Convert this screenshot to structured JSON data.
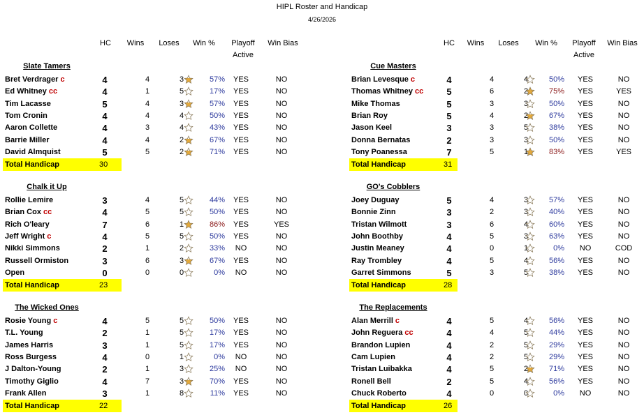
{
  "title": "HIPL Roster and Handicap",
  "date": "4/26/2026",
  "headers": {
    "hc": "HC",
    "wins": "Wins",
    "loses": "Loses",
    "winpct": "Win %",
    "playoff1": "Playoff",
    "playoff2": "Active",
    "winbias": "Win Bias"
  },
  "total_label": "Total Handicap",
  "icons": {
    "star": "star-icon"
  },
  "colors": {
    "highlight": "#ffff00",
    "captain": "#c00000",
    "pct_normal": "#2e3b9e",
    "pct_high": "#8b1a1a",
    "star_filled": "#e3a93c"
  },
  "teams": [
    {
      "name": "Slate Tamers",
      "total": "30",
      "players": [
        {
          "name": "Bret Verdrager",
          "cap": "c",
          "hc": "4",
          "wins": "4",
          "loses": "3",
          "star": "half",
          "pct": "57%",
          "playoff": "YES",
          "bias": "NO"
        },
        {
          "name": "Ed Whitney",
          "cap": "cc",
          "hc": "4",
          "wins": "1",
          "loses": "5",
          "star": "empty",
          "pct": "17%",
          "playoff": "YES",
          "bias": "NO"
        },
        {
          "name": "Tim Lacasse",
          "cap": "",
          "hc": "5",
          "wins": "4",
          "loses": "3",
          "star": "half",
          "pct": "57%",
          "playoff": "YES",
          "bias": "NO"
        },
        {
          "name": "Tom Cronin",
          "cap": "",
          "hc": "4",
          "wins": "4",
          "loses": "4",
          "star": "empty",
          "pct": "50%",
          "playoff": "YES",
          "bias": "NO"
        },
        {
          "name": "Aaron Collette",
          "cap": "",
          "hc": "4",
          "wins": "3",
          "loses": "4",
          "star": "empty",
          "pct": "43%",
          "playoff": "YES",
          "bias": "NO"
        },
        {
          "name": "Barrie Miller",
          "cap": "",
          "hc": "4",
          "wins": "4",
          "loses": "2",
          "star": "half",
          "pct": "67%",
          "playoff": "YES",
          "bias": "NO"
        },
        {
          "name": "David Almquist",
          "cap": "",
          "hc": "5",
          "wins": "5",
          "loses": "2",
          "star": "half",
          "pct": "71%",
          "playoff": "YES",
          "bias": "NO"
        }
      ]
    },
    {
      "name": "Cue Masters",
      "total": "31",
      "players": [
        {
          "name": "Brian Levesque",
          "cap": "c",
          "hc": "4",
          "wins": "4",
          "loses": "4",
          "star": "empty",
          "pct": "50%",
          "playoff": "YES",
          "bias": "NO"
        },
        {
          "name": "Thomas Whitney",
          "cap": "cc",
          "hc": "5",
          "wins": "6",
          "loses": "2",
          "star": "full",
          "pct": "75%",
          "playoff": "YES",
          "bias": "YES"
        },
        {
          "name": "Mike Thomas",
          "cap": "",
          "hc": "5",
          "wins": "3",
          "loses": "3",
          "star": "empty",
          "pct": "50%",
          "playoff": "YES",
          "bias": "NO"
        },
        {
          "name": "Brian Roy",
          "cap": "",
          "hc": "5",
          "wins": "4",
          "loses": "2",
          "star": "half",
          "pct": "67%",
          "playoff": "YES",
          "bias": "NO"
        },
        {
          "name": "Jason Keel",
          "cap": "",
          "hc": "3",
          "wins": "3",
          "loses": "5",
          "star": "empty",
          "pct": "38%",
          "playoff": "YES",
          "bias": "NO"
        },
        {
          "name": "Donna Bernatas",
          "cap": "",
          "hc": "2",
          "wins": "3",
          "loses": "3",
          "star": "empty",
          "pct": "50%",
          "playoff": "YES",
          "bias": "NO"
        },
        {
          "name": "Tony Poanessa",
          "cap": "",
          "hc": "7",
          "wins": "5",
          "loses": "1",
          "star": "full",
          "pct": "83%",
          "playoff": "YES",
          "bias": "YES"
        }
      ]
    },
    {
      "name": "Chalk it Up",
      "total": "23",
      "players": [
        {
          "name": "Rollie Lemire",
          "cap": "",
          "hc": "3",
          "wins": "4",
          "loses": "5",
          "star": "empty",
          "pct": "44%",
          "playoff": "YES",
          "bias": "NO"
        },
        {
          "name": "Brian Cox",
          "cap": "cc",
          "hc": "4",
          "wins": "5",
          "loses": "5",
          "star": "empty",
          "pct": "50%",
          "playoff": "YES",
          "bias": "NO"
        },
        {
          "name": "Rich O'leary",
          "cap": "",
          "hc": "7",
          "wins": "6",
          "loses": "1",
          "star": "full",
          "pct": "86%",
          "playoff": "YES",
          "bias": "YES"
        },
        {
          "name": "Jeff Wright",
          "cap": "c",
          "hc": "4",
          "wins": "5",
          "loses": "5",
          "star": "empty",
          "pct": "50%",
          "playoff": "YES",
          "bias": "NO"
        },
        {
          "name": "Nikki Simmons",
          "cap": "",
          "hc": "2",
          "wins": "1",
          "loses": "2",
          "star": "empty",
          "pct": "33%",
          "playoff": "NO",
          "bias": "NO"
        },
        {
          "name": "Russell Ormiston",
          "cap": "",
          "hc": "3",
          "wins": "6",
          "loses": "3",
          "star": "half",
          "pct": "67%",
          "playoff": "YES",
          "bias": "NO"
        },
        {
          "name": "Open",
          "cap": "",
          "hc": "0",
          "wins": "0",
          "loses": "0",
          "star": "empty",
          "pct": "0%",
          "playoff": "NO",
          "bias": "NO"
        }
      ]
    },
    {
      "name": "GO's Cobblers",
      "total": "28",
      "players": [
        {
          "name": "Joey Duguay",
          "cap": "",
          "hc": "5",
          "wins": "4",
          "loses": "3",
          "star": "empty",
          "pct": "57%",
          "playoff": "YES",
          "bias": "NO"
        },
        {
          "name": "Bonnie Zinn",
          "cap": "",
          "hc": "3",
          "wins": "2",
          "loses": "3",
          "star": "empty",
          "pct": "40%",
          "playoff": "YES",
          "bias": "NO"
        },
        {
          "name": "Tristan Wilmott",
          "cap": "",
          "hc": "3",
          "wins": "6",
          "loses": "4",
          "star": "empty",
          "pct": "60%",
          "playoff": "YES",
          "bias": "NO"
        },
        {
          "name": "John Boothby",
          "cap": "",
          "hc": "4",
          "wins": "5",
          "loses": "3",
          "star": "empty",
          "pct": "63%",
          "playoff": "YES",
          "bias": "NO"
        },
        {
          "name": "Justin Meaney",
          "cap": "",
          "hc": "4",
          "wins": "0",
          "loses": "1",
          "star": "empty",
          "pct": "0%",
          "playoff": "NO",
          "bias": "COD"
        },
        {
          "name": "Ray Trombley",
          "cap": "",
          "hc": "4",
          "wins": "5",
          "loses": "4",
          "star": "empty",
          "pct": "56%",
          "playoff": "YES",
          "bias": "NO"
        },
        {
          "name": "Garret Simmons",
          "cap": "",
          "hc": "5",
          "wins": "3",
          "loses": "5",
          "star": "empty",
          "pct": "38%",
          "playoff": "YES",
          "bias": "NO"
        }
      ]
    },
    {
      "name": "The Wicked Ones",
      "total": "22",
      "players": [
        {
          "name": "Rosie Young",
          "cap": "c",
          "hc": "4",
          "wins": "5",
          "loses": "5",
          "star": "empty",
          "pct": "50%",
          "playoff": "YES",
          "bias": "NO"
        },
        {
          "name": "T.L. Young",
          "cap": "",
          "hc": "2",
          "wins": "1",
          "loses": "5",
          "star": "empty",
          "pct": "17%",
          "playoff": "YES",
          "bias": "NO"
        },
        {
          "name": "James Harris",
          "cap": "",
          "hc": "3",
          "wins": "1",
          "loses": "5",
          "star": "empty",
          "pct": "17%",
          "playoff": "YES",
          "bias": "NO"
        },
        {
          "name": "Ross Burgess",
          "cap": "",
          "hc": "4",
          "wins": "0",
          "loses": "1",
          "star": "empty",
          "pct": "0%",
          "playoff": "NO",
          "bias": "NO"
        },
        {
          "name": "J Dalton-Young",
          "cap": "",
          "hc": "2",
          "wins": "1",
          "loses": "3",
          "star": "empty",
          "pct": "25%",
          "playoff": "NO",
          "bias": "NO"
        },
        {
          "name": "Timothy Giglio",
          "cap": "",
          "hc": "4",
          "wins": "7",
          "loses": "3",
          "star": "half",
          "pct": "70%",
          "playoff": "YES",
          "bias": "NO"
        },
        {
          "name": "Frank Allen",
          "cap": "",
          "hc": "3",
          "wins": "1",
          "loses": "8",
          "star": "empty",
          "pct": "11%",
          "playoff": "YES",
          "bias": "NO"
        }
      ]
    },
    {
      "name": "The Replacements",
      "total": "26",
      "players": [
        {
          "name": "Alan Merrill",
          "cap": "c",
          "hc": "4",
          "wins": "5",
          "loses": "4",
          "star": "empty",
          "pct": "56%",
          "playoff": "YES",
          "bias": "NO"
        },
        {
          "name": "John Reguera",
          "cap": "cc",
          "hc": "4",
          "wins": "4",
          "loses": "5",
          "star": "empty",
          "pct": "44%",
          "playoff": "YES",
          "bias": "NO"
        },
        {
          "name": "Brandon Lupien",
          "cap": "",
          "hc": "4",
          "wins": "2",
          "loses": "5",
          "star": "empty",
          "pct": "29%",
          "playoff": "YES",
          "bias": "NO"
        },
        {
          "name": "Cam Lupien",
          "cap": "",
          "hc": "4",
          "wins": "2",
          "loses": "5",
          "star": "empty",
          "pct": "29%",
          "playoff": "YES",
          "bias": "NO"
        },
        {
          "name": "Tristan Luibakka",
          "cap": "",
          "hc": "4",
          "wins": "5",
          "loses": "2",
          "star": "half",
          "pct": "71%",
          "playoff": "YES",
          "bias": "NO"
        },
        {
          "name": "Ronell Bell",
          "cap": "",
          "hc": "2",
          "wins": "5",
          "loses": "4",
          "star": "empty",
          "pct": "56%",
          "playoff": "YES",
          "bias": "NO"
        },
        {
          "name": "Chuck Roberto",
          "cap": "",
          "hc": "4",
          "wins": "0",
          "loses": "0",
          "star": "empty",
          "pct": "0%",
          "playoff": "NO",
          "bias": "NO"
        }
      ]
    }
  ]
}
